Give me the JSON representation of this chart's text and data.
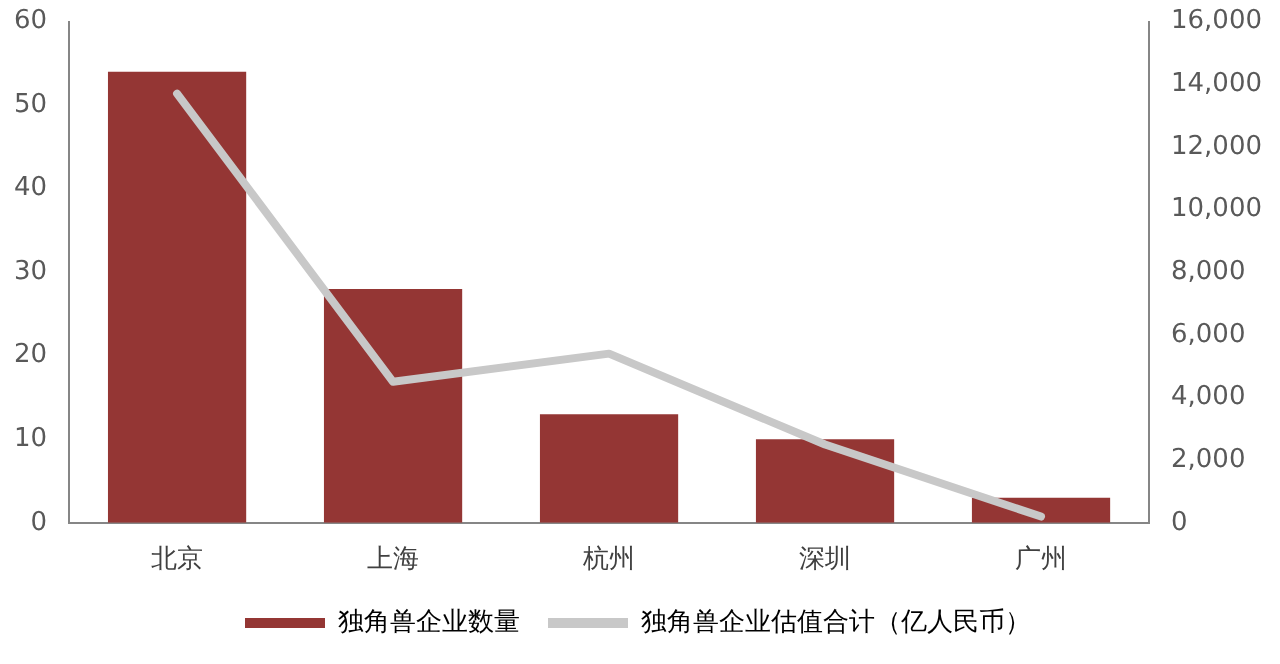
{
  "chart_data": {
    "type": "bar",
    "categories": [
      "北京",
      "上海",
      "杭州",
      "深圳",
      "广州"
    ],
    "series": [
      {
        "name": "独角兽企业数量",
        "color": "#943634",
        "values": [
          54,
          28,
          13,
          10,
          3
        ]
      },
      {
        "name": "独角兽企业估值合计（亿人民币）",
        "type": "line",
        "axis": "y2",
        "color": "#c8c8c8",
        "values": [
          13700,
          4500,
          5400,
          2500,
          200
        ]
      }
    ],
    "ylim": [
      0,
      60
    ],
    "yticks": [
      0,
      10,
      20,
      30,
      40,
      50,
      60
    ],
    "y2lim": [
      0,
      16000
    ],
    "y2ticks": [
      {
        "value": 0,
        "label": "0"
      },
      {
        "value": 2000,
        "label": "2,000"
      },
      {
        "value": 4000,
        "label": "4,000"
      },
      {
        "value": 6000,
        "label": "6,000"
      },
      {
        "value": 8000,
        "label": "8,000"
      },
      {
        "value": 10000,
        "label": "10,000"
      },
      {
        "value": 12000,
        "label": "12,000"
      },
      {
        "value": 14000,
        "label": "14,000"
      },
      {
        "value": 16000,
        "label": "16,000"
      }
    ],
    "grid": false,
    "legend": "bottom",
    "marker": "none"
  }
}
